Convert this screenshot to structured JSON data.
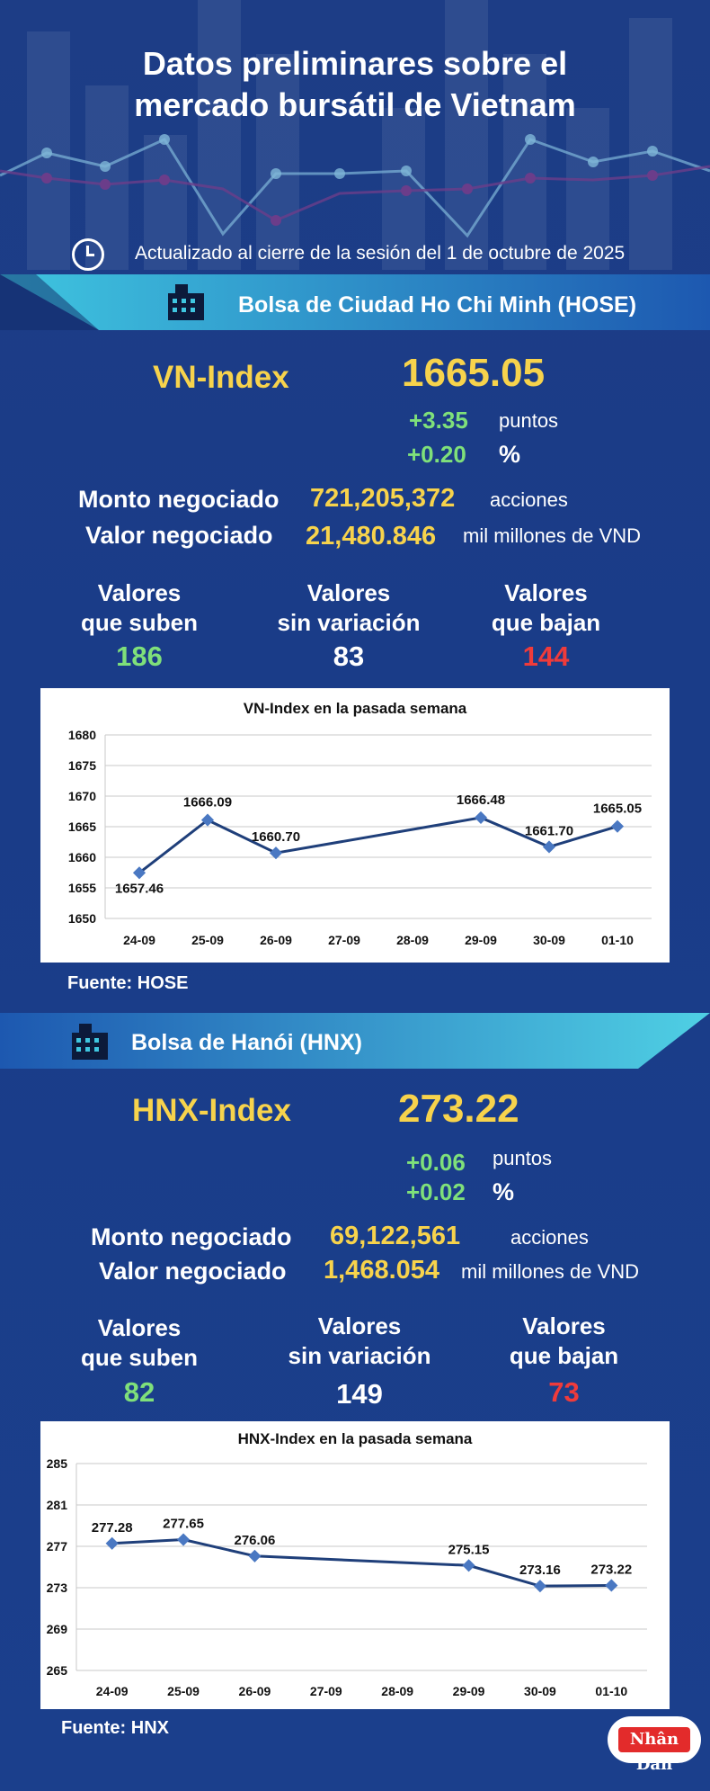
{
  "header": {
    "title_line1": "Datos preliminares sobre el",
    "title_line2": "mercado bursátil de Vietnam",
    "updated": "Actualizado al cierre de la sesión del 1 de octubre de 2025"
  },
  "hose": {
    "exchange": "Bolsa de Ciudad Ho Chi Minh (HOSE)",
    "index_name": "VN-Index",
    "index_value": "1665.05",
    "change_points": "+3.35",
    "change_points_unit": "puntos",
    "change_pct": "+0.20",
    "change_pct_unit": "%",
    "volume_label": "Monto negociado",
    "volume": "721,205,372",
    "volume_unit": "acciones",
    "value_label": "Valor negociado",
    "value": "21,480.846",
    "value_unit": "mil millones de VND",
    "up_label_1": "Valores",
    "up_label_2": "que suben",
    "up_count": "186",
    "same_label_1": "Valores",
    "same_label_2": "sin variación",
    "same_count": "83",
    "down_label_1": "Valores",
    "down_label_2": "que bajan",
    "down_count": "144",
    "source": "Fuente: HOSE"
  },
  "hnx": {
    "exchange": "Bolsa de Hanói (HNX)",
    "index_name": "HNX-Index",
    "index_value": "273.22",
    "change_points": "+0.06",
    "change_points_unit": "puntos",
    "change_pct": "+0.02",
    "change_pct_unit": "%",
    "volume_label": "Monto negociado",
    "volume": "69,122,561",
    "volume_unit": "acciones",
    "value_label": "Valor negociado",
    "value": "1,468.054",
    "value_unit": "mil millones de VND",
    "up_label_1": "Valores",
    "up_label_2": "que suben",
    "up_count": "82",
    "same_label_1": "Valores",
    "same_label_2": "sin variación",
    "same_count": "149",
    "down_label_1": "Valores",
    "down_label_2": "que bajan",
    "down_count": "73",
    "source": "Fuente:  HNX"
  },
  "logo": {
    "text": "Nhân Dân"
  },
  "colors": {
    "accent_yellow": "#f7d34c",
    "up_green": "#7fe07a",
    "down_red": "#ef3b3b",
    "line_blue": "#1f3f7a"
  },
  "chart_data": [
    {
      "type": "line",
      "title": "VN-Index en la pasada semana",
      "categories": [
        "24-09",
        "25-09",
        "26-09",
        "27-09",
        "28-09",
        "29-09",
        "30-09",
        "01-10"
      ],
      "points": [
        {
          "x": "24-09",
          "y": 1657.46
        },
        {
          "x": "25-09",
          "y": 1666.09
        },
        {
          "x": "26-09",
          "y": 1660.7
        },
        {
          "x": "29-09",
          "y": 1666.48
        },
        {
          "x": "30-09",
          "y": 1661.7
        },
        {
          "x": "01-10",
          "y": 1665.05
        }
      ],
      "labels": [
        "1657.46",
        "1666.09",
        "1660.70",
        "1666.48",
        "1661.70",
        "1665.05"
      ],
      "yticks": [
        "1650",
        "1655",
        "1660",
        "1665",
        "1670",
        "1675",
        "1680"
      ],
      "ylim": [
        1650,
        1680
      ],
      "grid": true
    },
    {
      "type": "line",
      "title": "HNX-Index en la pasada semana",
      "categories": [
        "24-09",
        "25-09",
        "26-09",
        "27-09",
        "28-09",
        "29-09",
        "30-09",
        "01-10"
      ],
      "points": [
        {
          "x": "24-09",
          "y": 277.28
        },
        {
          "x": "25-09",
          "y": 277.65
        },
        {
          "x": "26-09",
          "y": 276.06
        },
        {
          "x": "29-09",
          "y": 275.15
        },
        {
          "x": "30-09",
          "y": 273.16
        },
        {
          "x": "01-10",
          "y": 273.22
        }
      ],
      "labels": [
        "277.28",
        "277.65",
        "276.06",
        "275.15",
        "273.16",
        "273.22"
      ],
      "yticks": [
        "265",
        "269",
        "273",
        "277",
        "281",
        "285"
      ],
      "ylim": [
        265,
        285
      ],
      "grid": true
    }
  ]
}
